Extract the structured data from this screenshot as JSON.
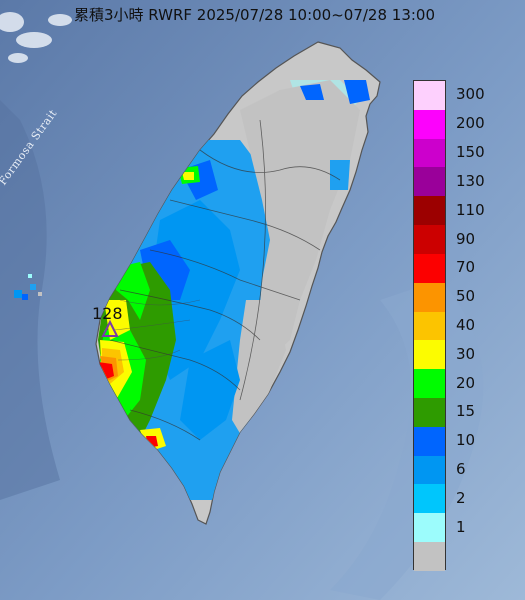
{
  "title": "累積3小時 RWRF 2025/07/28 10:00~07/28 13:00",
  "strait_label": "Formosa Strait",
  "peak_marker": {
    "value": "128",
    "icon": "triangle-marker-icon",
    "color": "#7a3aa8"
  },
  "legend": [
    {
      "label": "300",
      "color": "#fdd0fd"
    },
    {
      "label": "200",
      "color": "#fc02fc"
    },
    {
      "label": "150",
      "color": "#cc00cc"
    },
    {
      "label": "130",
      "color": "#9a009a"
    },
    {
      "label": "110",
      "color": "#9c0000"
    },
    {
      "label": "90",
      "color": "#cc0000"
    },
    {
      "label": "70",
      "color": "#fc0000"
    },
    {
      "label": "50",
      "color": "#fc9400"
    },
    {
      "label": "40",
      "color": "#fcc400"
    },
    {
      "label": "30",
      "color": "#fcfc00"
    },
    {
      "label": "20",
      "color": "#00fc00"
    },
    {
      "label": "15",
      "color": "#2e9b00"
    },
    {
      "label": "10",
      "color": "#0065fe"
    },
    {
      "label": "6",
      "color": "#0096f2"
    },
    {
      "label": "2",
      "color": "#00c6fc"
    },
    {
      "label": "1",
      "color": "#9cfcfc"
    },
    {
      "label": "",
      "color": "#c2c2c2"
    }
  ]
}
